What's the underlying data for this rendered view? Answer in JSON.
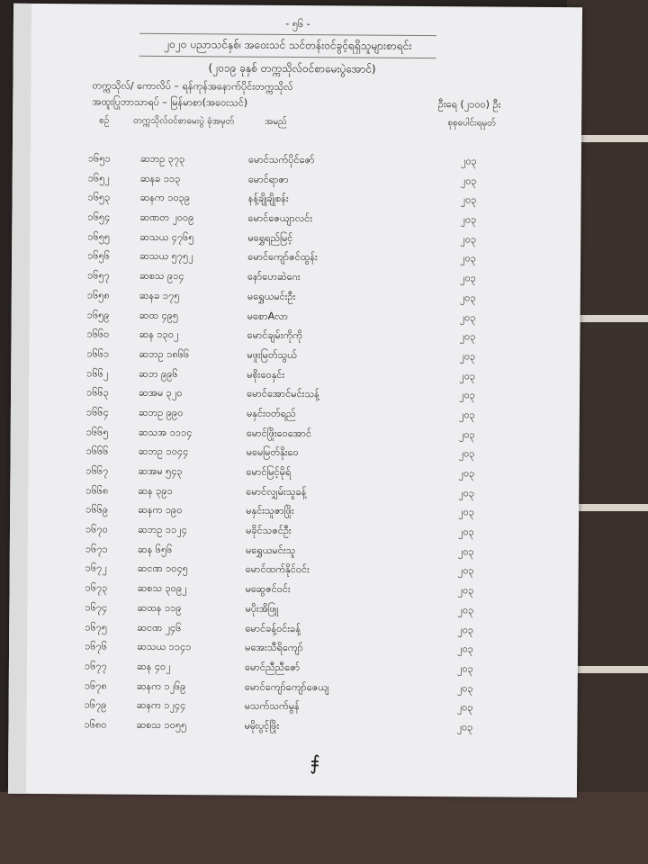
{
  "page_number": "- ၅၆ -",
  "title": "၂၀၂၀ ပညာသင်နှစ်၊ အဝေးသင် သင်တန်းဝင်ခွင့်ရရှိသူများစာရင်း",
  "subtitle": "(၂၀၁၉ ခုနှစ် တက္ကသိုလ်ဝင်စာမေးပွဲအောင်)",
  "university_line": "တက္ကသိုလ်/ ကောလိပ် – ရန်ကုန်အနောက်ပိုင်းတက္ကသိုလ်",
  "major_line": "အထူးပြုဘာသာရပ် – မြန်မာစာ(အဝေးသင်)",
  "total_count": "ဦးရေ (၂၁၀၀) ဦး",
  "headers": {
    "no": "စဉ်",
    "roll": "တက္ကသိုလ်ဝင်စာမေးပွဲ ခုံအမှတ်",
    "name": "အမည်",
    "score": "စုစုပေါင်းရမှတ်"
  },
  "rows": [
    {
      "no": "၁၆၅၁",
      "roll": "ဆဘဥ ၃၇၃",
      "name": "မောင်သက်ပိုင်ဇော်",
      "score": "၂၀၃"
    },
    {
      "no": "၁၆၅၂",
      "roll": "ဆနခ ၁၁၃",
      "name": "မောင်ရာဇာ",
      "score": "၂၀၃"
    },
    {
      "no": "၁၆၅၃",
      "roll": "ဆနက ၁၀၃၉",
      "name": "နန့်ချိုချိုစန်း",
      "score": "၂၀၃"
    },
    {
      "no": "၁၆၅၄",
      "roll": "ဆဏတ ၂၀၀၉",
      "name": "မောင်ဇေယျာလင်း",
      "score": "၂၀၃"
    },
    {
      "no": "၁၆၅၅",
      "roll": "ဆသယ ၄၇၆၅",
      "name": "မရွှေရည်မြင့်",
      "score": "၂၀၃"
    },
    {
      "no": "၁၆၅၆",
      "roll": "ဆသယ ၅၇၅၂",
      "name": "မောင်ကျော်ဇင်ထွန်း",
      "score": "၂၀၃"
    },
    {
      "no": "၁၆၅၇",
      "roll": "ဆစသ ၉၁၄",
      "name": "နော်ဟေဆဲဂေး",
      "score": "၂၀၃"
    },
    {
      "no": "၁၆၅၈",
      "roll": "ဆနခ ၁၇၅",
      "name": "မရွှေယမင်းဦး",
      "score": "၂၀၃"
    },
    {
      "no": "၁၆၅၉",
      "roll": "ဆထ ၄၉၅",
      "name": "မစောAလာ",
      "score": "၂၀၃"
    },
    {
      "no": "၁၆၆၀",
      "roll": "ဆန ၁၃၀၂",
      "name": "မောင်ချမ်းကိုကို",
      "score": "၂၀၃"
    },
    {
      "no": "၁၆၆၁",
      "roll": "ဆဘဥ ၁၈၆၆",
      "name": "မဖူးမြတ်သွယ်",
      "score": "၂၀၃"
    },
    {
      "no": "၁၆၆၂",
      "roll": "ဆဘ ၉၉၆",
      "name": "မစိုးဝေနှင်း",
      "score": "၂၀၃"
    },
    {
      "no": "၁၆၆၃",
      "roll": "ဆအမ ၃၂၀",
      "name": "မောင်အောင်မင်းသန့်",
      "score": "၂၀၃"
    },
    {
      "no": "၁၆၆၄",
      "roll": "ဆဘဥ ၉၉၀",
      "name": "မနှင်းဝတ်ရည်",
      "score": "၂၀၃"
    },
    {
      "no": "၁၆၆၅",
      "roll": "ဆသအ ၁၁၁၄",
      "name": "မောင်ဖြိုးဝေအောင်",
      "score": "၂၀၃"
    },
    {
      "no": "၁၆၆၆",
      "roll": "ဆဘဥ ၁၀၄၄",
      "name": "မမေမြတ်နိုးဝေ",
      "score": "၂၀၃"
    },
    {
      "no": "၁၆၆၇",
      "roll": "ဆအမ ၅၄၃",
      "name": "မောင်မြင့်မိုရ်",
      "score": "၂၀၃"
    },
    {
      "no": "၁၆၆၈",
      "roll": "ဆန ၃၉၁",
      "name": "မောင်လျှမ်းသူခန့်",
      "score": "၂၀၃"
    },
    {
      "no": "၁၆၆၉",
      "roll": "ဆနက ၁၉၀",
      "name": "မနှင်းသူဇာဖြိုး",
      "score": "၂၀၃"
    },
    {
      "no": "၁၆၇၀",
      "roll": "ဆဘဥ ၁၁၂၄",
      "name": "မခိုင်သဇင်ဦး",
      "score": "၂၀၃"
    },
    {
      "no": "၁၆၇၁",
      "roll": "ဆန ၆၅၆",
      "name": "မရွှေယမင်းသူ",
      "score": "၂၀၃"
    },
    {
      "no": "၁၆၇၂",
      "roll": "ဆငဏ ၁၀၄၅",
      "name": "မောင်ထက်နိုင်ဝင်း",
      "score": "၂၀၃"
    },
    {
      "no": "၁၆၇၃",
      "roll": "ဆစသ ၃၀၉၂",
      "name": "မဆွေဇင်ဝင်း",
      "score": "၂၀၃"
    },
    {
      "no": "၁၆၇၄",
      "roll": "ဆထန ၁၁၉",
      "name": "မပိုးအိဖြူ",
      "score": "၂၀၃"
    },
    {
      "no": "၁၆၇၅",
      "roll": "ဆငဏ ၂၄၆",
      "name": "မောင်ခန့်ဝင်းခန့်",
      "score": "၂၀၃"
    },
    {
      "no": "၁၆၇၆",
      "roll": "ဆသယ ၁၁၄၁",
      "name": "မအေးသီရိကျော်",
      "score": "၂၀၃"
    },
    {
      "no": "၁၆၇၇",
      "roll": "ဆန ၄၀၂",
      "name": "မောင်ညီညီဇော်",
      "score": "၂၀၃"
    },
    {
      "no": "၁၆၇၈",
      "roll": "ဆနက ၁၂၆၉",
      "name": "မောင်ကျော်ကျော်ဇေယျ",
      "score": "၂၀၃"
    },
    {
      "no": "၁၆၇၉",
      "roll": "ဆနက ၁၂၄၄",
      "name": "မသက်သက်မွန်",
      "score": "၂၀၃"
    },
    {
      "no": "၁၆၈၀",
      "roll": "ဆစသ ၁၀၅၅",
      "name": "မမိုးပွင့်ဖြိုး",
      "score": "၂၀၃"
    }
  ]
}
